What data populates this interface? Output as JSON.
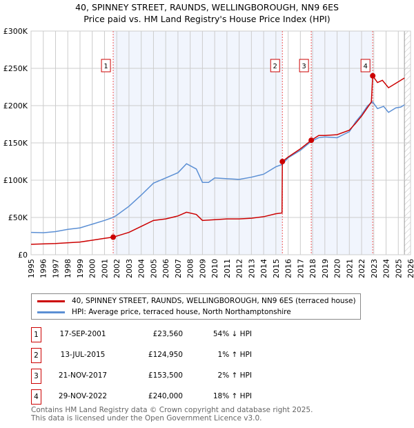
{
  "title": "40, SPINNEY STREET, RAUNDS, WELLINGBOROUGH, NN9 6ES",
  "subtitle": "Price paid vs. HM Land Registry's House Price Index (HPI)",
  "chart_data": {
    "type": "line",
    "xlim": [
      1995,
      2026
    ],
    "ylim": [
      0,
      300000
    ],
    "ytick_labels": [
      "£0",
      "£50K",
      "£100K",
      "£150K",
      "£200K",
      "£250K",
      "£300K"
    ],
    "yticks": [
      0,
      50000,
      100000,
      150000,
      200000,
      250000,
      300000
    ],
    "xticks": [
      1995,
      1996,
      1997,
      1998,
      1999,
      2000,
      2001,
      2002,
      2003,
      2004,
      2005,
      2006,
      2007,
      2008,
      2009,
      2010,
      2011,
      2012,
      2013,
      2014,
      2015,
      2016,
      2017,
      2018,
      2019,
      2020,
      2021,
      2022,
      2023,
      2024,
      2025,
      2026
    ],
    "shaded_ranges": [
      [
        2001.71,
        2015.53
      ],
      [
        2017.89,
        2022.91
      ]
    ],
    "future_hatch_from": 2025.5,
    "series": [
      {
        "name": "40, SPINNEY STREET, RAUNDS, WELLINGBOROUGH, NN9 6ES (terraced house)",
        "color": "#cc0000",
        "x": [
          1995,
          1997,
          1999,
          2001,
          2001.71,
          2003,
          2004,
          2005,
          2006,
          2007,
          2007.7,
          2008.5,
          2009,
          2010,
          2011,
          2012,
          2013,
          2014,
          2015,
          2015.5,
          2015.53,
          2016,
          2017,
          2017.89,
          2018.5,
          2019,
          2020,
          2021,
          2021.5,
          2022,
          2022.8,
          2022.91,
          2023.3,
          2023.7,
          2024.2,
          2024.8,
          2025.5
        ],
        "y": [
          14000,
          15000,
          17000,
          22000,
          23560,
          30000,
          38000,
          46000,
          48000,
          52000,
          57000,
          54000,
          46000,
          47000,
          48000,
          48000,
          49000,
          51000,
          55000,
          56000,
          124950,
          131000,
          142000,
          153500,
          160000,
          160000,
          161000,
          167000,
          176000,
          186000,
          205000,
          240000,
          231000,
          234000,
          224000,
          230000,
          237000
        ]
      },
      {
        "name": "HPI: Average price, terraced house, North Northamptonshire",
        "color": "#5b8fd4",
        "x": [
          1995,
          1996,
          1997,
          1998,
          1999,
          2000,
          2001,
          2001.71,
          2002,
          2003,
          2004,
          2005,
          2006,
          2007,
          2007.7,
          2008.5,
          2009,
          2009.5,
          2010,
          2011,
          2012,
          2013,
          2014,
          2015,
          2015.5,
          2016,
          2017,
          2017.89,
          2018.5,
          2019,
          2020,
          2020.5,
          2021,
          2021.5,
          2022,
          2022.5,
          2022.9,
          2023.3,
          2023.8,
          2024.2,
          2024.8,
          2025.2,
          2025.5
        ],
        "y": [
          30000,
          29500,
          31000,
          34000,
          36000,
          41000,
          46000,
          50000,
          53000,
          65000,
          80000,
          96000,
          103000,
          110000,
          122000,
          115000,
          97000,
          97000,
          103000,
          102000,
          101000,
          104000,
          108000,
          118000,
          121000,
          130000,
          140000,
          152000,
          157000,
          158000,
          157000,
          161000,
          165000,
          178000,
          188000,
          200000,
          205000,
          196000,
          199000,
          191000,
          197000,
          198000,
          201000
        ]
      }
    ],
    "markers": [
      {
        "label": "1",
        "x": 2001.71,
        "y": 23560
      },
      {
        "label": "2",
        "x": 2015.53,
        "y": 124950
      },
      {
        "label": "3",
        "x": 2017.89,
        "y": 153500
      },
      {
        "label": "4",
        "x": 2022.91,
        "y": 240000
      }
    ]
  },
  "legend": {
    "red": "40, SPINNEY STREET, RAUNDS, WELLINGBOROUGH, NN9 6ES (terraced house)",
    "blue": "HPI: Average price, terraced house, North Northamptonshire"
  },
  "sales": [
    {
      "num": "1",
      "date": "17-SEP-2001",
      "price": "£23,560",
      "hpi": "54% ↓ HPI"
    },
    {
      "num": "2",
      "date": "13-JUL-2015",
      "price": "£124,950",
      "hpi": "1% ↑ HPI"
    },
    {
      "num": "3",
      "date": "21-NOV-2017",
      "price": "£153,500",
      "hpi": "2% ↑ HPI"
    },
    {
      "num": "4",
      "date": "29-NOV-2022",
      "price": "£240,000",
      "hpi": "18% ↑ HPI"
    }
  ],
  "footer": {
    "line1": "Contains HM Land Registry data © Crown copyright and database right 2025.",
    "line2": "This data is licensed under the Open Government Licence v3.0."
  }
}
